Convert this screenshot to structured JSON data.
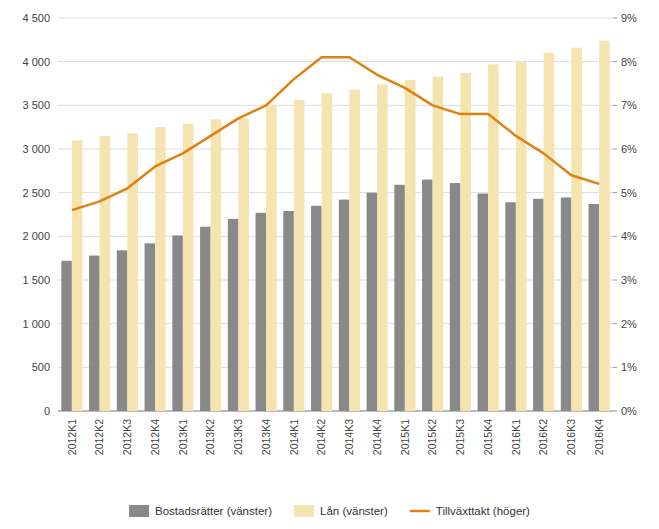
{
  "chart_data": {
    "type": "bar",
    "categories": [
      "2012K1",
      "2012K2",
      "2012K3",
      "2012K4",
      "2013K1",
      "2013K2",
      "2013K3",
      "2013K4",
      "2014K1",
      "2014K2",
      "2014K3",
      "2014K4",
      "2015K1",
      "2015K2",
      "2015K3",
      "2015K4",
      "2016K1",
      "2016K2",
      "2016K3",
      "2016K4"
    ],
    "series": [
      {
        "name": "Bostadsrätter (vänster)",
        "color": "#898989",
        "type": "bar",
        "values": [
          1720,
          1780,
          1840,
          1920,
          2010,
          2110,
          2200,
          2270,
          2290,
          2350,
          2420,
          2500,
          2590,
          2650,
          2610,
          2490,
          2390,
          2430,
          2445,
          2370
        ]
      },
      {
        "name": "Lån (vänster)",
        "color": "#f5e3b0",
        "type": "bar",
        "values": [
          3100,
          3150,
          3180,
          3250,
          3290,
          3340,
          3350,
          3510,
          3560,
          3640,
          3680,
          3740,
          3790,
          3830,
          3870,
          3970,
          4000,
          4100,
          4160,
          4240
        ]
      },
      {
        "name": "Tillväxttakt (höger)",
        "color": "#e08010",
        "type": "line",
        "axis": "y2",
        "values": [
          4.6,
          4.8,
          5.1,
          5.6,
          5.9,
          6.3,
          6.7,
          7.0,
          7.6,
          8.1,
          8.1,
          7.7,
          7.4,
          7.0,
          6.8,
          6.8,
          6.3,
          5.9,
          5.4,
          5.2
        ]
      }
    ],
    "ylim": [
      0,
      4500
    ],
    "yticks": [
      0,
      500,
      {
        "value": 1000,
        "label": "1 000"
      },
      {
        "value": 1500,
        "label": "1 500"
      },
      {
        "value": 2000,
        "label": "2 000"
      },
      {
        "value": 2500,
        "label": "2 500"
      },
      {
        "value": 3000,
        "label": "3 000"
      },
      {
        "value": 3500,
        "label": "3 500"
      },
      {
        "value": 4000,
        "label": "4 000"
      },
      {
        "value": 4500,
        "label": "4 500"
      }
    ],
    "y2lim": [
      0,
      9
    ],
    "y2ticks": [
      {
        "value": 0,
        "label": "0%"
      },
      {
        "value": 1,
        "label": "1%"
      },
      {
        "value": 2,
        "label": "2%"
      },
      {
        "value": 3,
        "label": "3%"
      },
      {
        "value": 4,
        "label": "4%"
      },
      {
        "value": 5,
        "label": "5%"
      },
      {
        "value": 6,
        "label": "6%"
      },
      {
        "value": 7,
        "label": "7%"
      },
      {
        "value": 8,
        "label": "8%"
      },
      {
        "value": 9,
        "label": "9%"
      }
    ],
    "grid": true,
    "legend": "bottom"
  }
}
